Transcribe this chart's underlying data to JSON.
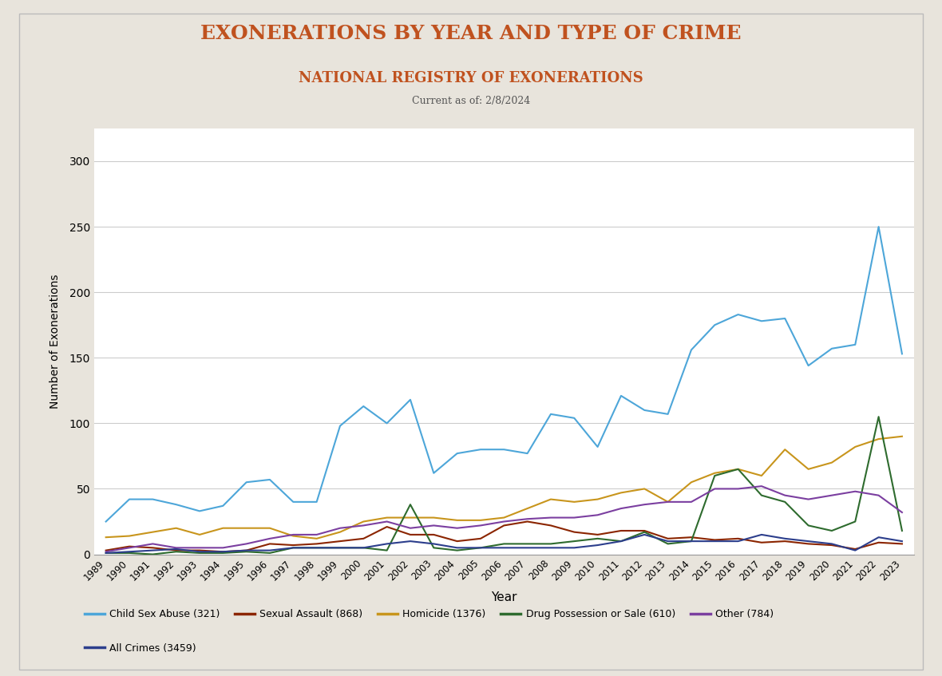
{
  "title": "EXONERATIONS BY YEAR AND TYPE OF CRIME",
  "subtitle": "NATIONAL REGISTRY OF EXONERATIONS",
  "date_label": "Current as of: 2/8/2024",
  "xlabel": "Year",
  "ylabel": "Number of Exonerations",
  "background_color": "#e8e4dc",
  "plot_bg_color": "#ffffff",
  "title_color": "#c0521f",
  "subtitle_color": "#c0521f",
  "date_color": "#555555",
  "years": [
    1989,
    1990,
    1991,
    1992,
    1993,
    1994,
    1995,
    1996,
    1997,
    1998,
    1999,
    2000,
    2001,
    2002,
    2003,
    2004,
    2005,
    2006,
    2007,
    2008,
    2009,
    2010,
    2011,
    2012,
    2013,
    2014,
    2015,
    2016,
    2017,
    2018,
    2019,
    2020,
    2021,
    2022,
    2023
  ],
  "series": {
    "Child Sex Abuse (321)": {
      "color": "#4da6d9",
      "values": [
        25,
        42,
        42,
        38,
        33,
        37,
        55,
        57,
        40,
        40,
        98,
        113,
        100,
        118,
        62,
        77,
        80,
        80,
        77,
        107,
        104,
        82,
        121,
        110,
        107,
        156,
        175,
        183,
        178,
        180,
        144,
        157,
        160,
        250,
        153
      ]
    },
    "Sexual Assault (868)": {
      "color": "#8b2500",
      "values": [
        3,
        6,
        5,
        3,
        3,
        2,
        3,
        8,
        7,
        8,
        10,
        12,
        21,
        15,
        15,
        10,
        12,
        22,
        25,
        22,
        17,
        15,
        18,
        18,
        12,
        13,
        11,
        12,
        9,
        10,
        8,
        7,
        4,
        9,
        8
      ]
    },
    "Homicide (1376)": {
      "color": "#c8951c",
      "values": [
        13,
        14,
        17,
        20,
        15,
        20,
        20,
        20,
        14,
        12,
        17,
        25,
        28,
        28,
        28,
        26,
        26,
        28,
        35,
        42,
        40,
        42,
        47,
        50,
        40,
        55,
        62,
        65,
        60,
        80,
        65,
        70,
        82,
        88,
        90
      ]
    },
    "Drug Possession or Sale (610)": {
      "color": "#2e6b2e",
      "values": [
        1,
        1,
        0,
        2,
        1,
        1,
        2,
        1,
        5,
        5,
        5,
        5,
        3,
        38,
        5,
        3,
        5,
        8,
        8,
        8,
        10,
        12,
        10,
        17,
        8,
        10,
        60,
        65,
        45,
        40,
        22,
        18,
        25,
        105,
        18
      ]
    },
    "Other (784)": {
      "color": "#7b3fa0",
      "values": [
        2,
        5,
        8,
        5,
        5,
        5,
        8,
        12,
        15,
        15,
        20,
        22,
        25,
        20,
        22,
        20,
        22,
        25,
        27,
        28,
        28,
        30,
        35,
        38,
        40,
        40,
        50,
        50,
        52,
        45,
        42,
        45,
        48,
        45,
        32
      ]
    },
    "All Crimes (3459)": {
      "color": "#2c3e8c",
      "values": [
        1,
        2,
        3,
        4,
        2,
        2,
        3,
        3,
        5,
        5,
        5,
        5,
        8,
        10,
        8,
        5,
        5,
        5,
        5,
        5,
        5,
        7,
        10,
        15,
        10,
        10,
        10,
        10,
        15,
        12,
        10,
        8,
        3,
        13,
        10
      ]
    }
  },
  "ylim": [
    0,
    325
  ],
  "yticks": [
    0,
    50,
    100,
    150,
    200,
    250,
    300
  ],
  "legend_entries": [
    {
      "label": "Child Sex Abuse (321)",
      "color": "#4da6d9"
    },
    {
      "label": "Sexual Assault (868)",
      "color": "#8b2500"
    },
    {
      "label": "Homicide (1376)",
      "color": "#c8951c"
    },
    {
      "label": "Drug Possession or Sale (610)",
      "color": "#2e6b2e"
    },
    {
      "label": "Other (784)",
      "color": "#7b3fa0"
    },
    {
      "label": "All Crimes (3459)",
      "color": "#2c3e8c"
    }
  ]
}
